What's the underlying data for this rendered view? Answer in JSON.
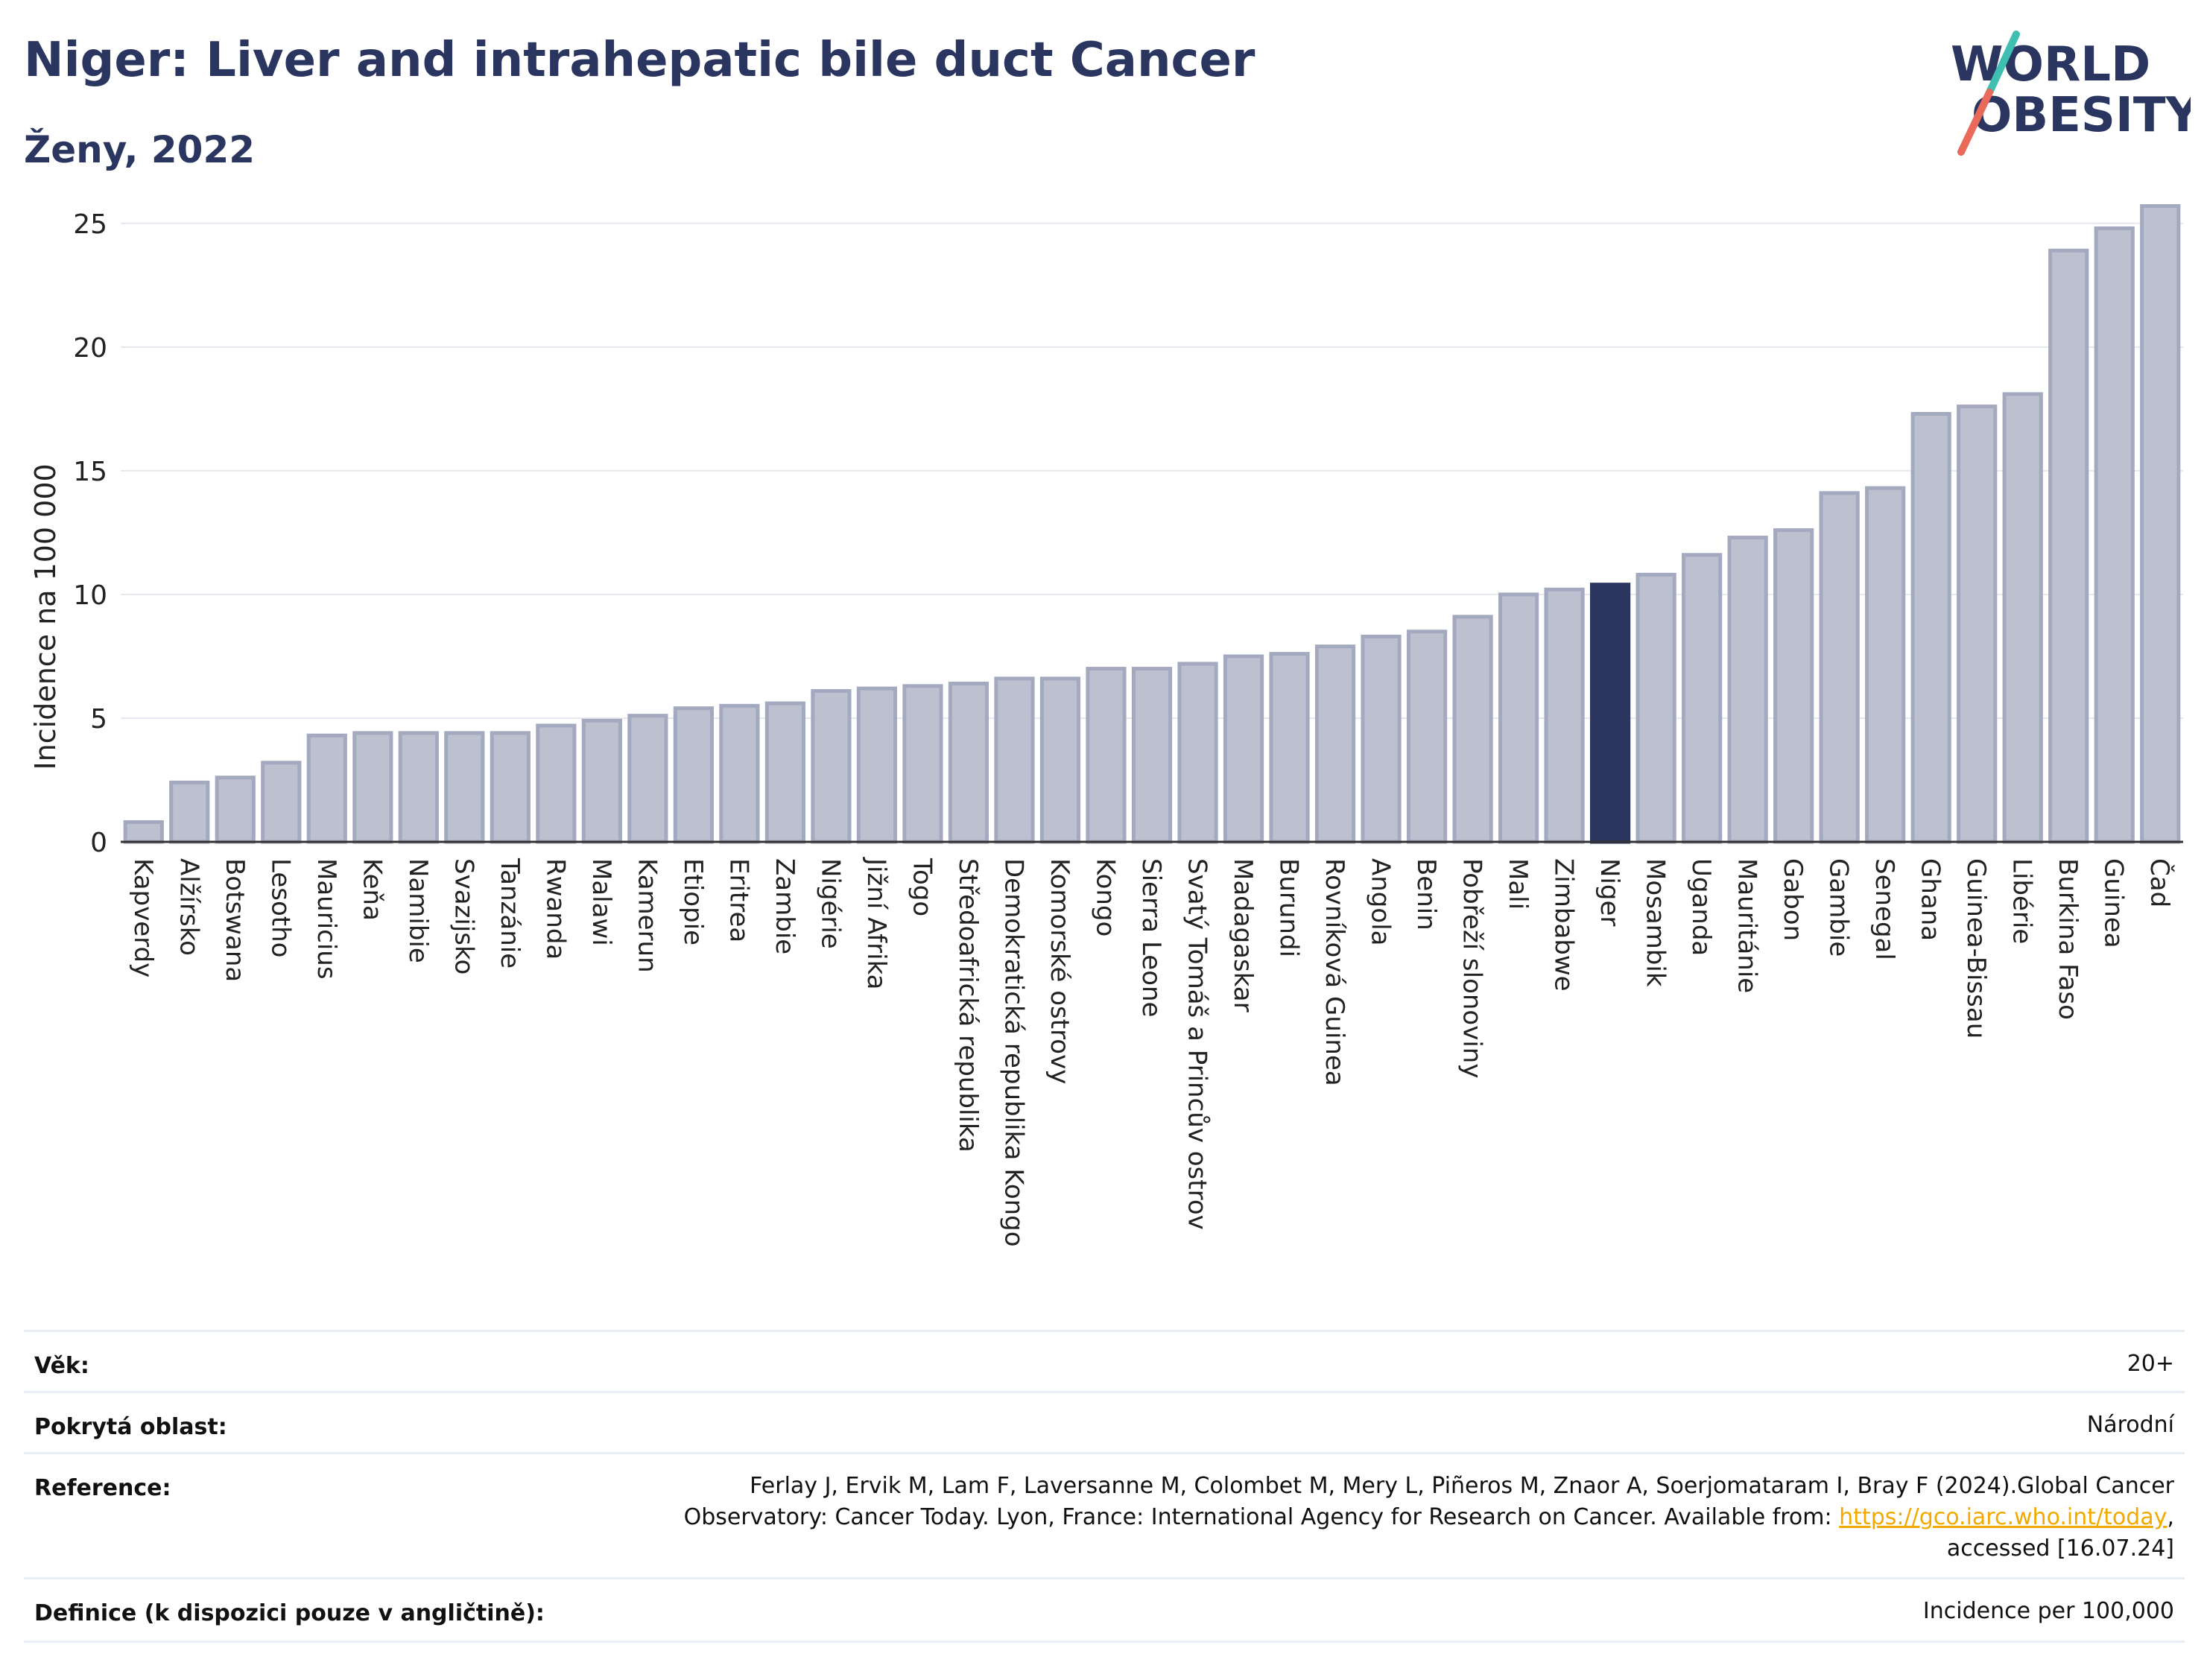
{
  "header": {
    "title": "Niger: Liver and intrahepatic bile duct Cancer",
    "subtitle": "Ženy, 2022"
  },
  "logo": {
    "line1": "WORLD",
    "line2": "OBESITY",
    "text_color": "#2b3660",
    "slash_colors": [
      "#3fbfb2",
      "#e96a5a"
    ]
  },
  "chart_data": {
    "type": "bar",
    "ylabel": "Incidence na 100 000",
    "xlabel": "",
    "ylim": [
      0,
      26.5
    ],
    "yticks": [
      0,
      5,
      10,
      15,
      20,
      25
    ],
    "grid": true,
    "bar_color": "#bcc0cf",
    "bar_edge_color": "#a3a9bf",
    "highlight_color": "#2b3660",
    "highlight": "Niger",
    "categories": [
      "Kapverdy",
      "Alžírsko",
      "Botswana",
      "Lesotho",
      "Mauricius",
      "Keňa",
      "Namibie",
      "Svazijsko",
      "Tanzánie",
      "Rwanda",
      "Malawi",
      "Kamerun",
      "Etiopie",
      "Eritrea",
      "Zambie",
      "Nigérie",
      "Jižní Afrika",
      "Togo",
      "Středoafrická republika",
      "Demokratická republika Kongo",
      "Komorské ostrovy",
      "Kongo",
      "Sierra Leone",
      "Svatý Tomáš a Princův ostrov",
      "Madagaskar",
      "Burundi",
      "Rovníková Guinea",
      "Angola",
      "Benin",
      "Pobřeží slonoviny",
      "Mali",
      "Zimbabwe",
      "Niger",
      "Mosambik",
      "Uganda",
      "Mauritánie",
      "Gabon",
      "Gambie",
      "Senegal",
      "Ghana",
      "Guinea-Bissau",
      "Libérie",
      "Burkina Faso",
      "Guinea",
      "Čad"
    ],
    "values": [
      0.8,
      2.4,
      2.6,
      3.2,
      4.3,
      4.4,
      4.4,
      4.4,
      4.4,
      4.7,
      4.9,
      5.1,
      5.4,
      5.5,
      5.6,
      6.1,
      6.2,
      6.3,
      6.4,
      6.6,
      6.6,
      7.0,
      7.0,
      7.2,
      7.5,
      7.6,
      7.9,
      8.3,
      8.5,
      9.1,
      10.0,
      10.2,
      10.4,
      10.8,
      11.6,
      12.3,
      12.6,
      14.1,
      14.3,
      17.3,
      17.6,
      18.1,
      23.9,
      24.8,
      25.7
    ]
  },
  "meta": {
    "rows": [
      {
        "label": "Věk:",
        "value": "20+"
      },
      {
        "label": "Pokrytá oblast:",
        "value": "Národní"
      },
      {
        "label": "Reference:",
        "value_line1": "Ferlay J, Ervik M, Lam F, Laversanne M, Colombet M, Mery L, Piñeros M, Znaor A, Soerjomataram I, Bray F (2024).Global Cancer",
        "value_line2_prefix": "Observatory: Cancer Today. Lyon, France: International Agency for Research on Cancer. Available from: ",
        "link": "https://gco.iarc.who.int/today",
        "value_line2_suffix": ",",
        "value_line3": "accessed [16.07.24]"
      },
      {
        "label": "Definice (k dispozici pouze v angličtině):",
        "value": "Incidence per 100,000"
      }
    ]
  }
}
